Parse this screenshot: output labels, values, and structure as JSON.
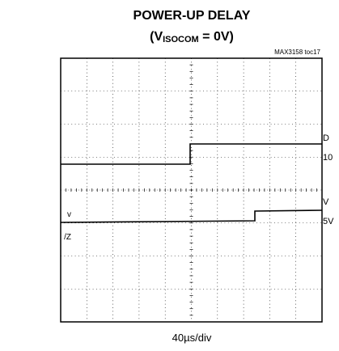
{
  "header": {
    "title": "POWER-UP DELAY",
    "subtitle": {
      "open": "(V",
      "subscript": "ISOCOM",
      "close": " = 0V)"
    },
    "note": "MAX3158 toc17"
  },
  "scope": {
    "x_scale": "40µs/div",
    "right_labels": [
      {
        "line1": "D",
        "line2": "10"
      },
      {
        "line1": "V",
        "line2": "5V"
      }
    ],
    "left_label": {
      "line1": "v",
      "line2": "/Z"
    }
  }
}
